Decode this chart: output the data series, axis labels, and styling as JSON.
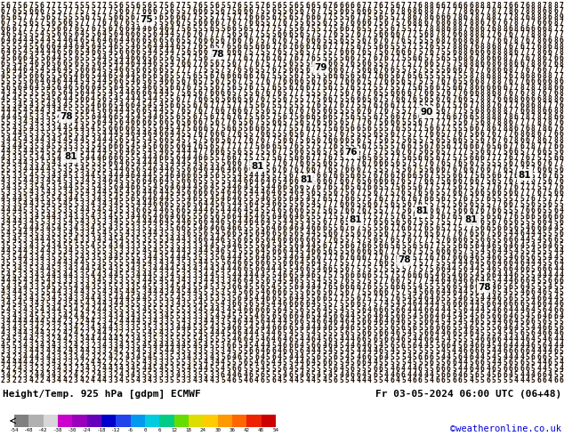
{
  "title_left": "Height/Temp. 925 hPa [gdpm] ECMWF",
  "title_right": "Fr 03-05-2024 06:00 UTC (06+48)",
  "copyright": "©weatheronline.co.uk",
  "colorbar_ticks": [
    -54,
    -48,
    -42,
    -38,
    -30,
    -24,
    -18,
    -12,
    -6,
    0,
    6,
    12,
    18,
    24,
    30,
    36,
    42,
    48,
    54
  ],
  "colorbar_colors": [
    "#808080",
    "#b0b0b0",
    "#d8d8d8",
    "#cc00cc",
    "#9900bb",
    "#6600bb",
    "#0000cc",
    "#2244ee",
    "#0099ee",
    "#00ccdd",
    "#00cc88",
    "#66dd00",
    "#dddd00",
    "#ffcc00",
    "#ff9900",
    "#ff6600",
    "#ee2200",
    "#cc0000"
  ],
  "main_bg": "#f5a800",
  "bottom_bg": "#ffffff",
  "fig_width": 6.34,
  "fig_height": 4.9,
  "dpi": 100,
  "digit_color": "#1a0a00",
  "contour_color": "#cccccc",
  "label_bg": "#ffffff",
  "label_fg": "#000000"
}
